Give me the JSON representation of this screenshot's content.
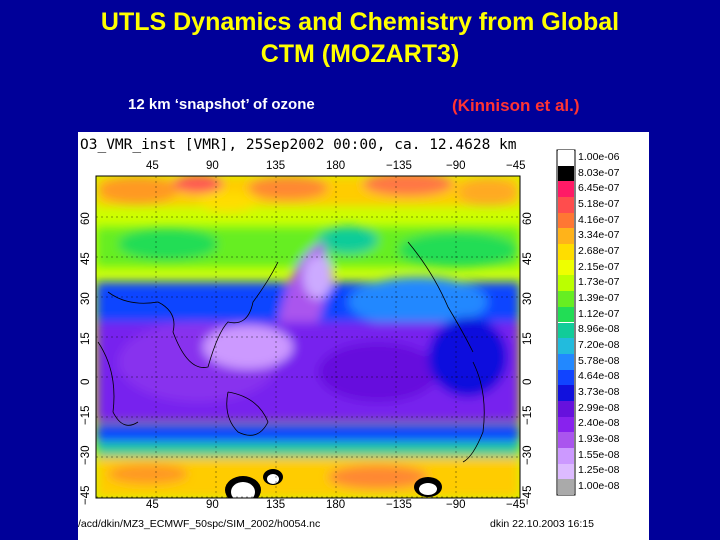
{
  "slide": {
    "title_line1": "UTLS Dynamics and Chemistry from Global",
    "title_line2": "CTM (MOZART3)",
    "subtitle_left": "12 km ‘snapshot’ of ozone",
    "subtitle_right": "(Kinnison et al.)"
  },
  "figure": {
    "header": "O3_VMR_inst [VMR], 25Sep2002 00:00, ca. 12.4628 km",
    "footer_path": "/acd/dkin/MZ3_ECMWF_50spc/SIM_2002/h0054.nc",
    "footer_date": "dkin 22.10.2003 16:15",
    "lon_ticks": [
      "45",
      "90",
      "135",
      "180",
      "−135",
      "−90",
      "−45"
    ],
    "lat_ticks": [
      "60",
      "45",
      "30",
      "15",
      "0",
      "−15",
      "−30",
      "−45"
    ],
    "colorbar": [
      {
        "label": "1.00e-06",
        "color": "#ffffff"
      },
      {
        "label": "8.03e-07",
        "color": "#000000"
      },
      {
        "label": "6.45e-07",
        "color": "#ff1a66"
      },
      {
        "label": "5.18e-07",
        "color": "#ff4d4d"
      },
      {
        "label": "4.16e-07",
        "color": "#ff7733"
      },
      {
        "label": "3.34e-07",
        "color": "#ffb31a"
      },
      {
        "label": "2.68e-07",
        "color": "#ffdd00"
      },
      {
        "label": "2.15e-07",
        "color": "#eeff00"
      },
      {
        "label": "1.73e-07",
        "color": "#bbff00"
      },
      {
        "label": "1.39e-07",
        "color": "#66ee22"
      },
      {
        "label": "1.12e-07",
        "color": "#22dd55"
      },
      {
        "label": "8.96e-08",
        "color": "#11cc99"
      },
      {
        "label": "7.20e-08",
        "color": "#22bbdd"
      },
      {
        "label": "5.78e-08",
        "color": "#2288ff"
      },
      {
        "label": "4.64e-08",
        "color": "#1144ff"
      },
      {
        "label": "3.73e-08",
        "color": "#1111dd"
      },
      {
        "label": "2.99e-08",
        "color": "#6611dd"
      },
      {
        "label": "2.40e-08",
        "color": "#8822ee"
      },
      {
        "label": "1.93e-08",
        "color": "#aa55ee"
      },
      {
        "label": "1.55e-08",
        "color": "#cc99ff"
      },
      {
        "label": "1.25e-08",
        "color": "#ddbbff"
      },
      {
        "label": "1.00e-08",
        "color": "#aaaaaa"
      }
    ]
  }
}
